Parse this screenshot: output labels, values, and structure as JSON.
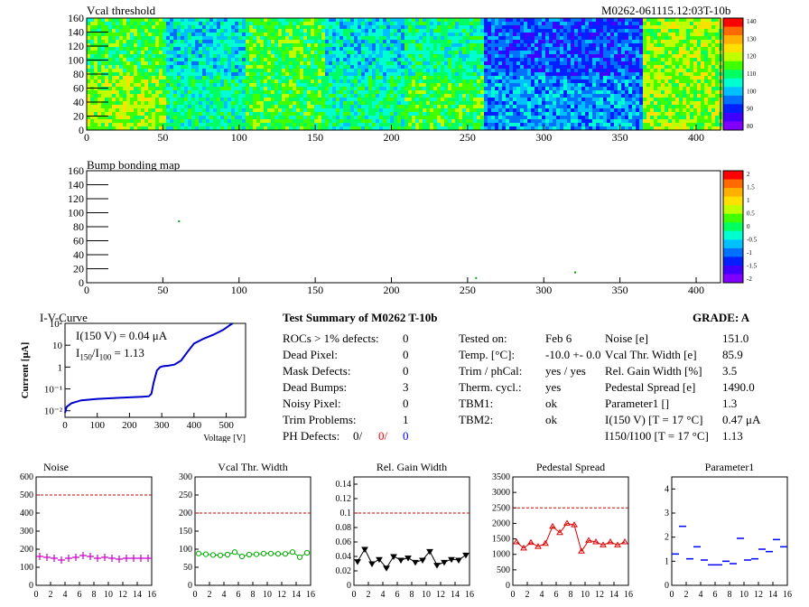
{
  "header": {
    "vcal_title": "Vcal threshold",
    "module_id": "M0262-061115.12:03T-10b",
    "bump_title": "Bump bonding map"
  },
  "maps": {
    "x_ticks": [
      "0",
      "50",
      "100",
      "150",
      "200",
      "250",
      "300",
      "350",
      "400"
    ],
    "y_ticks": [
      "0",
      "20",
      "40",
      "60",
      "80",
      "100",
      "120",
      "140",
      "160"
    ],
    "vcal_scale": [
      "140",
      "130",
      "120",
      "110",
      "100",
      "90",
      "80"
    ],
    "bump_scale": [
      "2",
      "1.5",
      "1",
      "0.5",
      "0",
      "-0.5",
      "-1",
      "-1.5",
      "-2"
    ],
    "palette": [
      "#ff0000",
      "#ff6a00",
      "#ffb000",
      "#ffe000",
      "#c0ff00",
      "#40ff00",
      "#00ff60",
      "#00ffd0",
      "#00c0ff",
      "#0070ff",
      "#0020ff",
      "#4000ff",
      "#8000ff"
    ]
  },
  "iv": {
    "title": "I-V-Curve",
    "xlabel": "Voltage [V]",
    "ylabel": "Current [μA]",
    "x_ticks": [
      "0",
      "100",
      "200",
      "300",
      "400",
      "500"
    ],
    "y_ticks": [
      "10⁻²",
      "10⁻¹",
      "1",
      "10",
      "10²"
    ],
    "annot1": "I(150 V) = 0.04 μA",
    "annot2_a": "I",
    "annot2_sub1": "150",
    "annot2_b": "/I",
    "annot2_sub2": "100",
    "annot2_c": " =  1.13",
    "color": "#0000cc"
  },
  "summary": {
    "title": "Test Summary of M0262     T-10b",
    "grade": "GRADE:  A",
    "left": [
      {
        "label": "ROCs > 1% defects:",
        "value": "0"
      },
      {
        "label": "Dead Pixel:",
        "value": "0"
      },
      {
        "label": "Mask Defects:",
        "value": "0"
      },
      {
        "label": "Dead Bumps:",
        "value": "3"
      },
      {
        "label": "Noisy Pixel:",
        "value": "0"
      },
      {
        "label": "Trim Problems:",
        "value": "1"
      }
    ],
    "ph_label": "PH Defects:",
    "ph_values": [
      "0/",
      "0/",
      "0"
    ],
    "ph_colors": [
      "#000000",
      "#ff0000",
      "#0000ff"
    ],
    "mid": [
      {
        "label": "Tested on:",
        "value": "Feb 6"
      },
      {
        "label": "Temp. [°C]:",
        "value": "-10.0 +- 0.0"
      },
      {
        "label": "Trim / phCal:",
        "value": "yes / yes"
      },
      {
        "label": "Therm. cycl.:",
        "value": "yes"
      },
      {
        "label": "TBM1:",
        "value": "ok"
      },
      {
        "label": "TBM2:",
        "value": "ok"
      }
    ],
    "right": [
      {
        "label": "Noise [e]",
        "value": "151.0"
      },
      {
        "label": "Vcal Thr. Width [e]",
        "value": "85.9"
      },
      {
        "label": "Rel. Gain Width [%]",
        "value": "3.5"
      },
      {
        "label": "Pedestal Spread [e]",
        "value": "1490.0"
      },
      {
        "label": "Parameter1 []",
        "value": "1.3"
      },
      {
        "label": "I(150 V) [T = 17 °C]",
        "value": "0.47 μA"
      }
    ],
    "ratio_label": "I150/I100   [T = 17 °C]",
    "ratio_value": "1.13"
  },
  "chart_data": [
    {
      "type": "line",
      "title": "I-V-Curve",
      "xlabel": "Voltage [V]",
      "ylabel": "Current [μA]",
      "yscale": "log",
      "xlim": [
        0,
        560
      ],
      "ylim": [
        0.005,
        100
      ],
      "x": [
        0,
        5,
        20,
        50,
        100,
        150,
        200,
        240,
        260,
        268,
        275,
        285,
        295,
        305,
        320,
        340,
        360,
        380,
        400,
        430,
        460,
        490,
        510,
        520
      ],
      "y": [
        0.008,
        0.015,
        0.022,
        0.03,
        0.035,
        0.038,
        0.041,
        0.044,
        0.046,
        0.06,
        0.2,
        0.7,
        1.0,
        1.1,
        1.15,
        1.3,
        2.0,
        5.0,
        12.0,
        20.0,
        30.0,
        50.0,
        80.0,
        100.0
      ]
    },
    {
      "type": "scatter",
      "title": "Noise",
      "xlim": [
        0,
        16
      ],
      "ylim": [
        0,
        600
      ],
      "x_ticks": [
        0,
        2,
        4,
        6,
        8,
        10,
        12,
        14,
        16
      ],
      "y_ticks": [
        0,
        100,
        200,
        300,
        400,
        500,
        600
      ],
      "x": [
        0,
        1,
        2,
        3,
        4,
        5,
        6,
        7,
        8,
        9,
        10,
        11,
        12,
        13,
        14,
        15
      ],
      "y": [
        160,
        155,
        150,
        140,
        150,
        155,
        165,
        160,
        150,
        155,
        150,
        145,
        150,
        150,
        150,
        150
      ],
      "threshold": 500,
      "color": "#cc00cc",
      "marker": "cross",
      "connect": false
    },
    {
      "type": "line",
      "title": "Vcal Thr. Width",
      "xlim": [
        0,
        16
      ],
      "ylim": [
        0,
        300
      ],
      "x_ticks": [
        0,
        2,
        4,
        6,
        8,
        10,
        12,
        14,
        16
      ],
      "y_ticks": [
        0,
        50,
        100,
        150,
        200,
        250,
        300
      ],
      "x": [
        0,
        1,
        2,
        3,
        4,
        5,
        6,
        7,
        8,
        9,
        10,
        11,
        12,
        13,
        14,
        15
      ],
      "y": [
        88,
        86,
        84,
        83,
        85,
        92,
        80,
        85,
        86,
        88,
        88,
        87,
        87,
        92,
        78,
        90
      ],
      "threshold": 200,
      "color": "#00aa00",
      "marker": "circle",
      "connect": true
    },
    {
      "type": "line",
      "title": "Rel. Gain Width",
      "xlim": [
        0,
        16
      ],
      "ylim": [
        0,
        0.15
      ],
      "x_ticks": [
        0,
        2,
        4,
        6,
        8,
        10,
        12,
        14,
        16
      ],
      "y_ticks": [
        0,
        0.02,
        0.04,
        0.06,
        0.08,
        0.1,
        0.12,
        0.14
      ],
      "x": [
        0,
        1,
        2,
        3,
        4,
        5,
        6,
        7,
        8,
        9,
        10,
        11,
        12,
        13,
        14,
        15
      ],
      "y": [
        0.033,
        0.05,
        0.03,
        0.036,
        0.024,
        0.04,
        0.035,
        0.038,
        0.032,
        0.035,
        0.047,
        0.028,
        0.032,
        0.036,
        0.035,
        0.042
      ],
      "threshold": 0.1,
      "color": "#000000",
      "marker": "triangle-down",
      "connect": true
    },
    {
      "type": "line",
      "title": "Pedestal Spread",
      "xlim": [
        0,
        16
      ],
      "ylim": [
        0,
        3500
      ],
      "x_ticks": [
        0,
        2,
        4,
        6,
        8,
        10,
        12,
        14,
        16
      ],
      "y_ticks": [
        0,
        500,
        1000,
        1500,
        2000,
        2500,
        3000,
        3500
      ],
      "x": [
        0,
        1,
        2,
        3,
        4,
        5,
        6,
        7,
        8,
        9,
        10,
        11,
        12,
        13,
        14,
        15
      ],
      "y": [
        1400,
        1200,
        1380,
        1250,
        1350,
        1900,
        1700,
        2000,
        1950,
        1100,
        1450,
        1400,
        1300,
        1400,
        1300,
        1400
      ],
      "threshold": 2500,
      "color": "#dd0000",
      "marker": "triangle-up",
      "connect": true
    },
    {
      "type": "scatter",
      "title": "Parameter1",
      "xlim": [
        0,
        16
      ],
      "ylim": [
        0,
        4.5
      ],
      "x_ticks": [
        0,
        2,
        4,
        6,
        8,
        10,
        12,
        14,
        16
      ],
      "y_ticks": [
        0,
        1,
        2,
        3,
        4
      ],
      "x": [
        0,
        1,
        2,
        3,
        4,
        5,
        6,
        7,
        8,
        9,
        10,
        11,
        12,
        13,
        14,
        15
      ],
      "y": [
        1.3,
        2.45,
        1.1,
        1.6,
        1.05,
        0.85,
        0.85,
        1.0,
        0.9,
        1.95,
        1.05,
        1.1,
        1.5,
        1.4,
        1.9,
        1.6
      ],
      "color": "#0000ff",
      "marker": "hbar",
      "connect": false
    }
  ]
}
